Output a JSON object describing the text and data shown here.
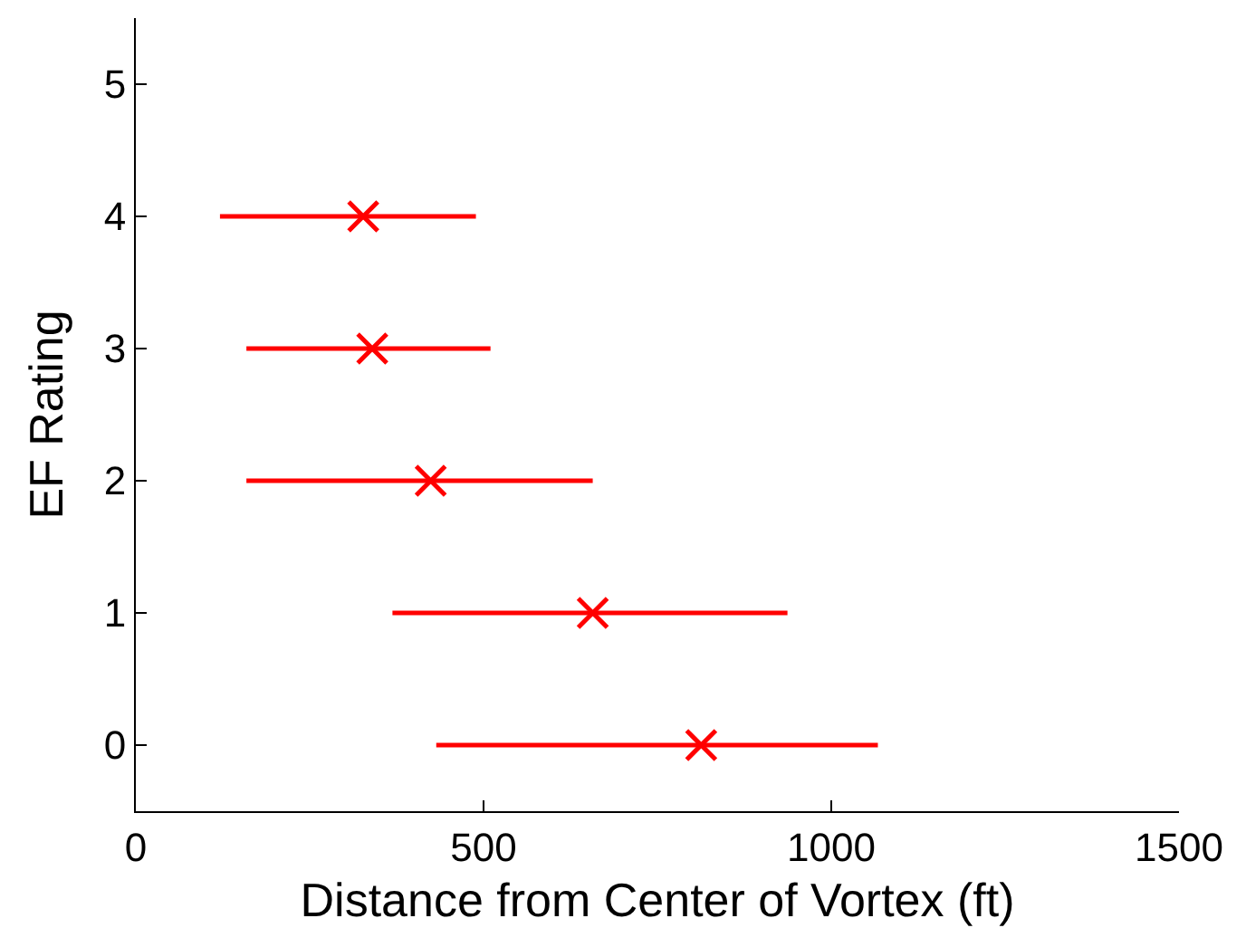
{
  "chart_data": {
    "type": "scatter",
    "xlabel": "Distance from Center of Vortex (ft)",
    "ylabel": "EF Rating",
    "x": [
      813,
      657,
      424,
      340,
      327
    ],
    "series": [
      {
        "color": "#ff0000",
        "values": [
          0,
          1,
          2,
          3,
          4
        ],
        "xerrors": [
          [
            432,
            1067
          ],
          [
            369,
            937
          ],
          [
            159,
            657
          ],
          [
            159,
            510
          ],
          [
            121,
            489
          ]
        ]
      }
    ],
    "xlim": [
      0,
      1500
    ],
    "xticks": [
      0,
      500,
      1000,
      1500
    ],
    "ylim": [
      -0.5,
      5.5
    ],
    "yticks": [
      0,
      1,
      2,
      3,
      4,
      5
    ],
    "marker": "cross",
    "grid": false
  }
}
